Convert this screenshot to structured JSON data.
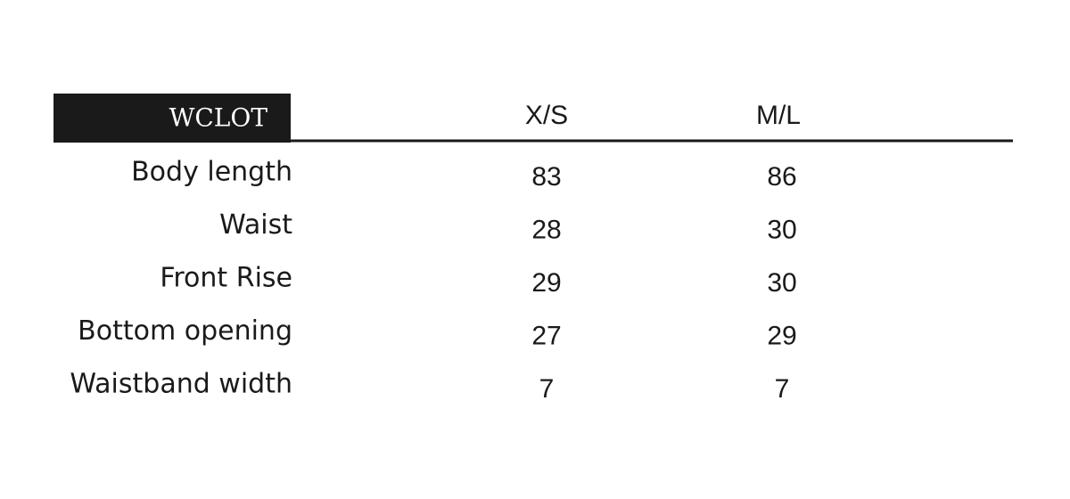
{
  "table": {
    "title": "WCLOT",
    "columns": [
      "X/S",
      "M/L"
    ],
    "rows": [
      [
        "Body length",
        83,
        86
      ],
      [
        "Waist",
        28,
        30
      ],
      [
        "Front Rise",
        29,
        30
      ],
      [
        "Bottom opening",
        27,
        29
      ],
      [
        "Waistband width",
        7,
        7
      ]
    ]
  }
}
